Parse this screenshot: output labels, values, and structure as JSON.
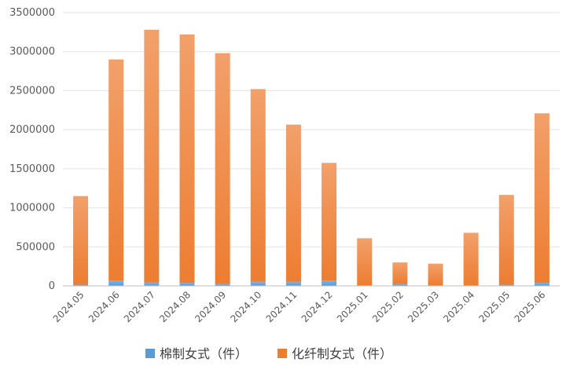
{
  "chart_data": {
    "type": "bar",
    "stacked": true,
    "categories": [
      "2024.05",
      "2024.06",
      "2024.07",
      "2024.08",
      "2024.09",
      "2024.10",
      "2024.11",
      "2024.12",
      "2025.01",
      "2025.02",
      "2025.03",
      "2025.04",
      "2025.05",
      "2025.06"
    ],
    "series": [
      {
        "name": "棉制女式（件）",
        "color": "#5b9bd5",
        "values": [
          15000,
          70000,
          45000,
          40000,
          30000,
          55000,
          55000,
          70000,
          10000,
          25000,
          10000,
          10000,
          15000,
          40000
        ]
      },
      {
        "name": "化纤制女式（件）",
        "color": "#ed7d31",
        "values": [
          1135000,
          2830000,
          3235000,
          3180000,
          2950000,
          2465000,
          2010000,
          1505000,
          600000,
          275000,
          275000,
          670000,
          1150000,
          2170000
        ]
      }
    ],
    "ylim": [
      0,
      3500000
    ],
    "yticks": [
      "0",
      "500000",
      "1000000",
      "1500000",
      "2000000",
      "2500000",
      "3000000",
      "3500000"
    ],
    "grid": true,
    "legend_position": "bottom"
  }
}
